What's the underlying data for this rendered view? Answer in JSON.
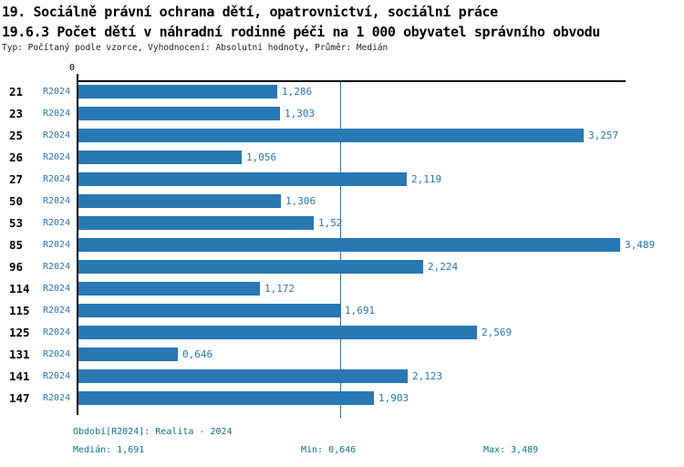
{
  "header": {
    "title1": "19. Sociálně právní ochrana dětí, opatrovnictví, sociální práce",
    "title2": "19.6.3 Počet dětí v náhradní rodinné péči na 1 000 obyvatel správního obvodu",
    "subtitle": "Typ: Počítaný podle vzorce, Vyhodnocení: Absolutní hodnoty, Průměr: Medián"
  },
  "chart_data": {
    "type": "bar",
    "orientation": "horizontal",
    "categories": [
      "21",
      "23",
      "25",
      "26",
      "27",
      "50",
      "53",
      "85",
      "96",
      "114",
      "115",
      "125",
      "131",
      "141",
      "147"
    ],
    "series": [
      {
        "name": "R2024",
        "values": [
          1.286,
          1.303,
          3.257,
          1.056,
          2.119,
          1.306,
          1.52,
          3.489,
          2.224,
          1.172,
          1.691,
          2.569,
          0.646,
          2.123,
          1.903
        ],
        "value_labels": [
          "1,286",
          "1,303",
          "3,257",
          "1,056",
          "2,119",
          "1,306",
          "1,52",
          "3,489",
          "2,224",
          "1,172",
          "1,691",
          "2,569",
          "0,646",
          "2,123",
          "1,903"
        ]
      }
    ],
    "xlim": [
      0,
      3.489
    ],
    "x_zero_tick_label": "0",
    "median_reference_line": 1.691,
    "grid": false,
    "legend_position": "none",
    "bar_color": "#2878b4",
    "median_line_color": "#2878b4",
    "label_color": "#2878b4"
  },
  "footer": {
    "period": "Období[R2024]: Realita - 2024",
    "median": "Medián: 1,691",
    "min": "Min: 0,646",
    "max": "Max: 3,489"
  }
}
